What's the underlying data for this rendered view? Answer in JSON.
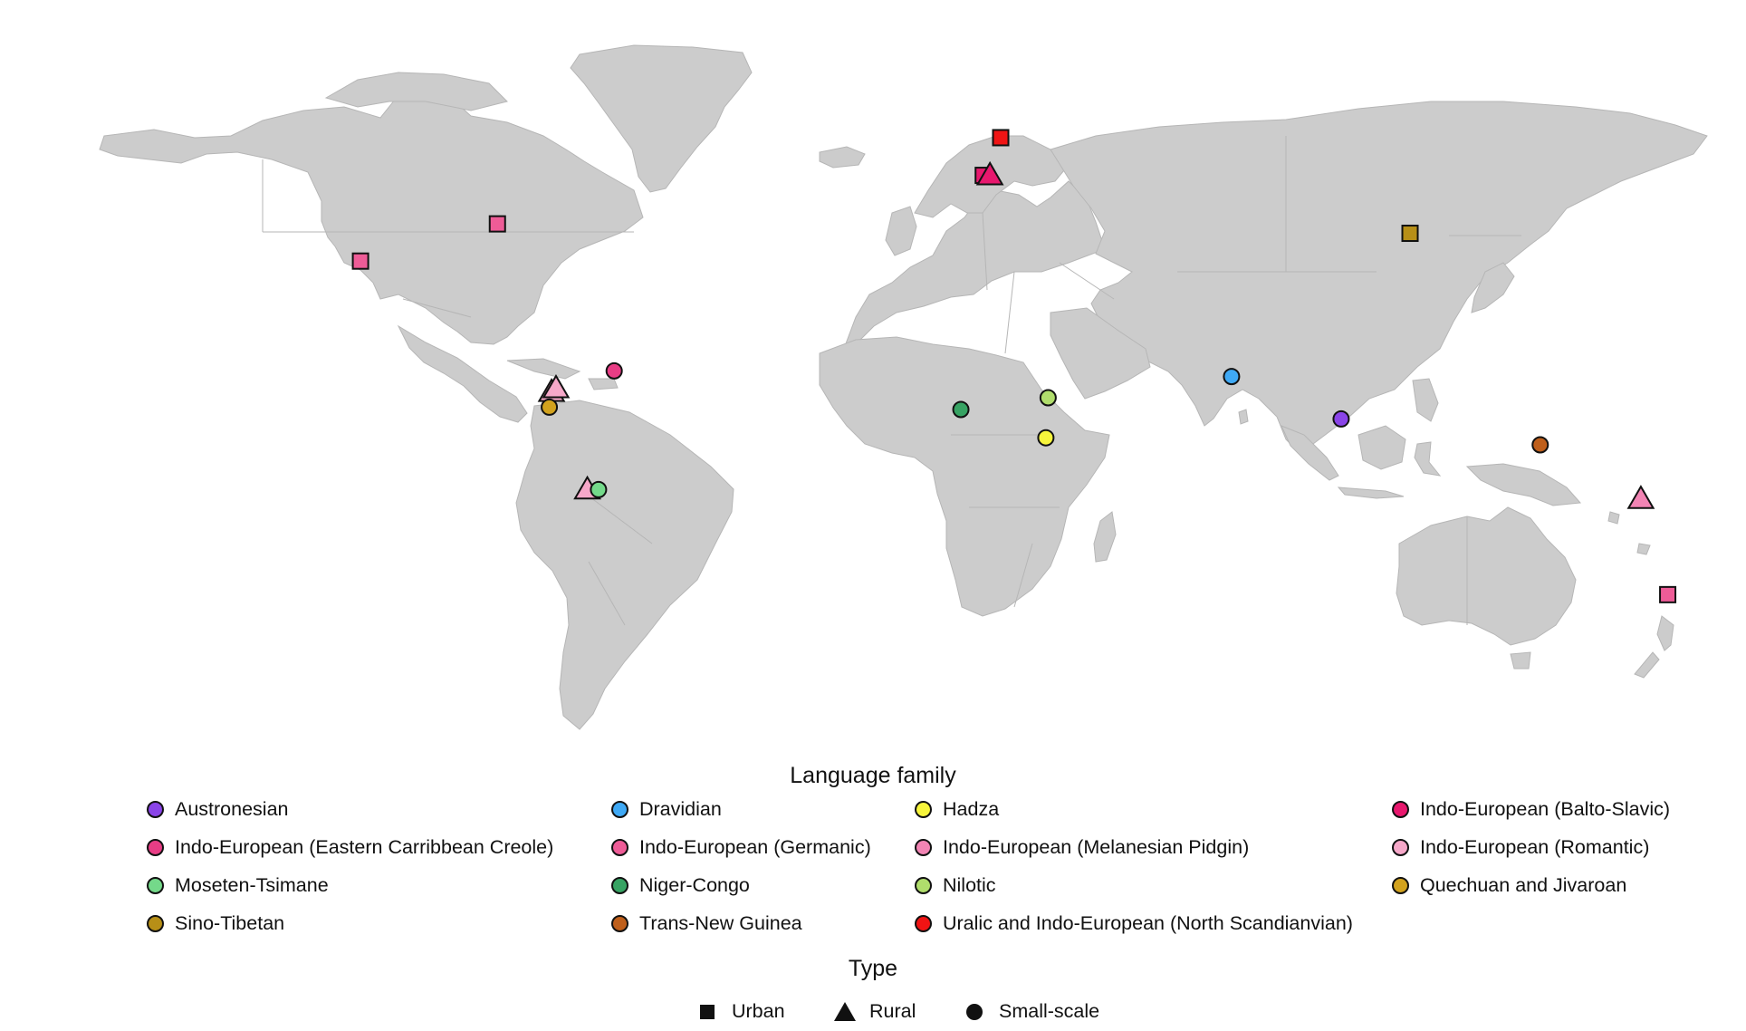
{
  "map": {
    "land_color": "#cccccc",
    "border_color": "#b6b6b6",
    "points": [
      {
        "lon": 24.9,
        "lat": 60.2,
        "shape": "square",
        "family": "uralic"
      },
      {
        "lon": 21.0,
        "lat": 52.2,
        "shape": "square",
        "family": "balto"
      },
      {
        "lon": 22.5,
        "lat": 52.2,
        "shape": "triangle",
        "family": "balto"
      },
      {
        "lon": -87.6,
        "lat": 41.9,
        "shape": "square",
        "family": "germanic"
      },
      {
        "lon": -118.2,
        "lat": 34.0,
        "shape": "square",
        "family": "germanic"
      },
      {
        "lon": 116.4,
        "lat": 39.9,
        "shape": "square",
        "family": "sinotibetan"
      },
      {
        "lon": -75.5,
        "lat": 6.2,
        "shape": "triangle",
        "family": "romantic"
      },
      {
        "lon": -74.5,
        "lat": 7.0,
        "shape": "triangle",
        "family": "romantic"
      },
      {
        "lon": -76.0,
        "lat": 3.0,
        "shape": "circle",
        "family": "quechuan"
      },
      {
        "lon": -61.5,
        "lat": 10.7,
        "shape": "circle",
        "family": "creole"
      },
      {
        "lon": -67.5,
        "lat": -14.5,
        "shape": "triangle",
        "family": "romantic"
      },
      {
        "lon": -65.0,
        "lat": -14.5,
        "shape": "circle",
        "family": "moseten"
      },
      {
        "lon": 76.5,
        "lat": 9.5,
        "shape": "circle",
        "family": "dravidian"
      },
      {
        "lon": 101.0,
        "lat": 0.5,
        "shape": "circle",
        "family": "austronesian"
      },
      {
        "lon": 16.0,
        "lat": 2.5,
        "shape": "circle",
        "family": "nigercongo"
      },
      {
        "lon": 35.0,
        "lat": -3.5,
        "shape": "circle",
        "family": "hadza"
      },
      {
        "lon": 35.5,
        "lat": 5.0,
        "shape": "circle",
        "family": "nilotic"
      },
      {
        "lon": 145.5,
        "lat": -5.0,
        "shape": "circle",
        "family": "transnewguinea"
      },
      {
        "lon": 168.0,
        "lat": -16.5,
        "shape": "triangle",
        "family": "melanesian"
      },
      {
        "lon": 174.0,
        "lat": -36.8,
        "shape": "square",
        "family": "germanic"
      }
    ]
  },
  "legend": {
    "title": "Language family",
    "families": [
      {
        "key": "austronesian",
        "label": "Austronesian",
        "color": "#8a44e8"
      },
      {
        "key": "dravidian",
        "label": "Dravidian",
        "color": "#3fa9f5"
      },
      {
        "key": "hadza",
        "label": "Hadza",
        "color": "#f7f53c"
      },
      {
        "key": "balto",
        "label": "Indo-European (Balto-Slavic)",
        "color": "#e8186e"
      },
      {
        "key": "creole",
        "label": "Indo-European (Eastern Carribbean Creole)",
        "color": "#e83d85"
      },
      {
        "key": "germanic",
        "label": "Indo-European (Germanic)",
        "color": "#ee5c97"
      },
      {
        "key": "melanesian",
        "label": "Indo-European (Melanesian Pidgin)",
        "color": "#f284b4"
      },
      {
        "key": "romantic",
        "label": "Indo-European (Romantic)",
        "color": "#f6a8c9"
      },
      {
        "key": "moseten",
        "label": "Moseten-Tsimane",
        "color": "#74d98a"
      },
      {
        "key": "nigercongo",
        "label": "Niger-Congo",
        "color": "#37a363"
      },
      {
        "key": "nilotic",
        "label": "Nilotic",
        "color": "#b0dd6c"
      },
      {
        "key": "quechuan",
        "label": "Quechuan and Jivaroan",
        "color": "#d2a21e"
      },
      {
        "key": "sinotibetan",
        "label": "Sino-Tibetan",
        "color": "#b78f17"
      },
      {
        "key": "transnewguinea",
        "label": "Trans-New Guinea",
        "color": "#bf5f1b"
      },
      {
        "key": "uralic",
        "label": "Uralic and Indo-European (North Scandianvian)",
        "color": "#f01414"
      }
    ]
  },
  "type_legend": {
    "title": "Type",
    "items": [
      {
        "shape": "square",
        "label": "Urban"
      },
      {
        "shape": "triangle",
        "label": "Rural"
      },
      {
        "shape": "circle",
        "label": "Small-scale"
      }
    ]
  }
}
